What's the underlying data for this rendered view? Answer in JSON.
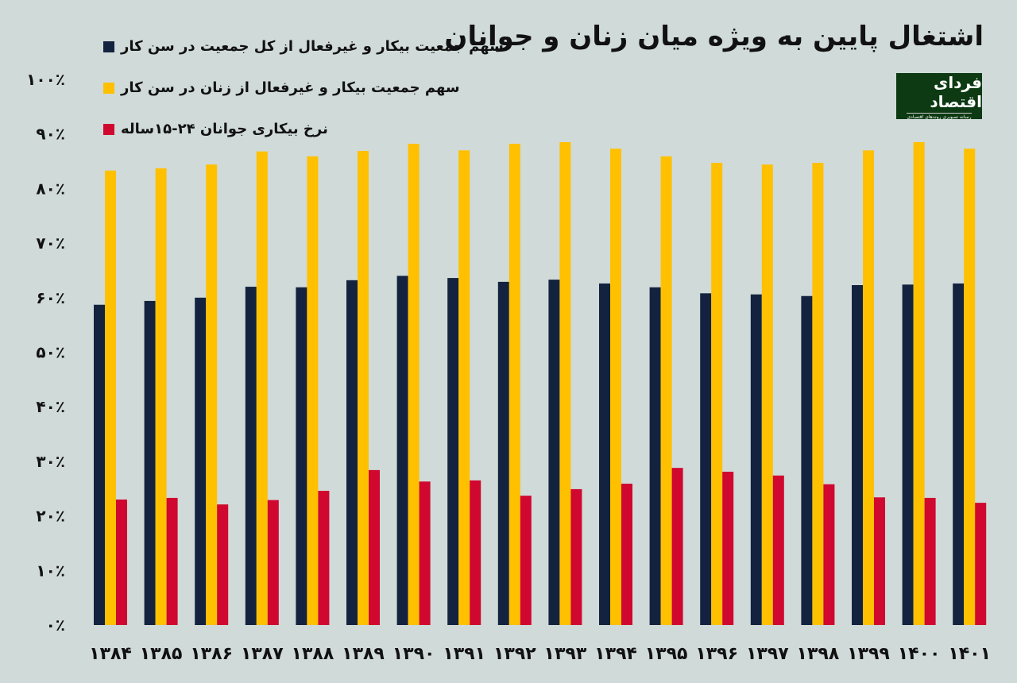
{
  "chart_data": {
    "type": "bar",
    "title": "اشتغال پایین به ویژه میان زنان و جوانان",
    "xlabel": "",
    "ylabel": "",
    "ylim": [
      0,
      100
    ],
    "yticks": [
      "۰٪",
      "۱۰٪",
      "۲۰٪",
      "۳۰٪",
      "۴۰٪",
      "۵۰٪",
      "۶۰٪",
      "۷۰٪",
      "۸۰٪",
      "۹۰٪",
      "۱۰۰٪"
    ],
    "grid": false,
    "legend_position": "top-left",
    "categories": [
      "۱۳۸۴",
      "۱۳۸۵",
      "۱۳۸۶",
      "۱۳۸۷",
      "۱۳۸۸",
      "۱۳۸۹",
      "۱۳۹۰",
      "۱۳۹۱",
      "۱۳۹۲",
      "۱۳۹۳",
      "۱۳۹۴",
      "۱۳۹۵",
      "۱۳۹۶",
      "۱۳۹۷",
      "۱۳۹۸",
      "۱۳۹۹",
      "۱۴۰۰",
      "۱۴۰۱"
    ],
    "series": [
      {
        "name": "سهم جمعیت بیکار و غیرفعال از کل جمعیت در سن کار",
        "color": "#13233f",
        "values": [
          58.7,
          59.4,
          60.0,
          62.0,
          61.9,
          63.2,
          64.0,
          63.6,
          62.9,
          63.3,
          62.6,
          61.9,
          60.8,
          60.6,
          60.3,
          62.3,
          62.4,
          62.6
        ]
      },
      {
        "name": "سهم جمعیت بیکار و غیرفعال از زنان در سن کار",
        "color": "#ffc000",
        "values": [
          83.3,
          83.7,
          84.4,
          86.8,
          85.9,
          86.9,
          88.2,
          87.0,
          88.2,
          88.5,
          87.3,
          85.9,
          84.7,
          84.4,
          84.7,
          87.0,
          88.5,
          87.3
        ]
      },
      {
        "name": "نرخ بیکاری جوانان ۲۴-۱۵ساله",
        "color": "#d0072f",
        "values": [
          23.0,
          23.3,
          22.1,
          22.9,
          24.6,
          28.4,
          26.3,
          26.5,
          23.7,
          24.9,
          25.9,
          28.8,
          28.1,
          27.4,
          25.8,
          23.4,
          23.3,
          22.4
        ]
      }
    ]
  },
  "logo": {
    "name": "فردای اقتصاد",
    "tagline": "رسانه تصویری روندهای اقتصادی"
  }
}
